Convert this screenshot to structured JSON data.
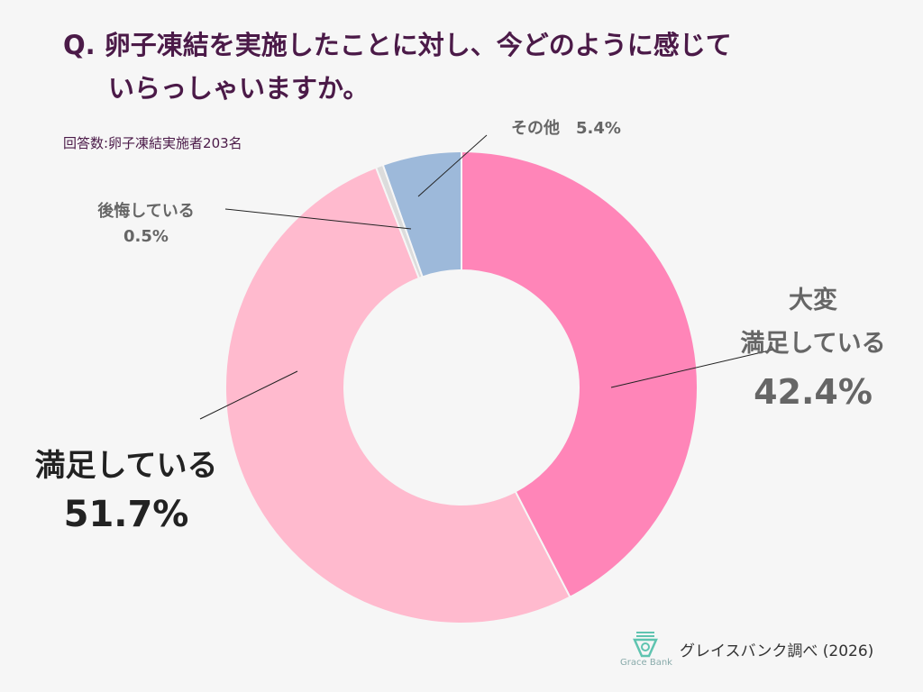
{
  "title_line1": "Q. 卵子凍結を実施したことに対し、今どのように感じて",
  "title_line2": "いらっしゃいますか。",
  "subtitle": "回答数:卵子凍結実施者203名",
  "source": "グレイスバンク調べ (2026)",
  "logo_text": "Grace Bank",
  "chart_data": {
    "type": "pie",
    "donut": true,
    "series": [
      {
        "label_lines": [
          "大変",
          "満足している"
        ],
        "value": 42.4,
        "value_text": "42.4%",
        "color": "#ff85b8"
      },
      {
        "label_lines": [
          "満足している"
        ],
        "value": 51.7,
        "value_text": "51.7%",
        "color": "#ffbace"
      },
      {
        "label_lines": [
          "後悔している"
        ],
        "value": 0.5,
        "value_text": "0.5%",
        "color": "#dcdcdc"
      },
      {
        "label_lines": [
          "その他"
        ],
        "value": 5.4,
        "value_text": "5.4%",
        "color": "#9db9da"
      }
    ]
  }
}
